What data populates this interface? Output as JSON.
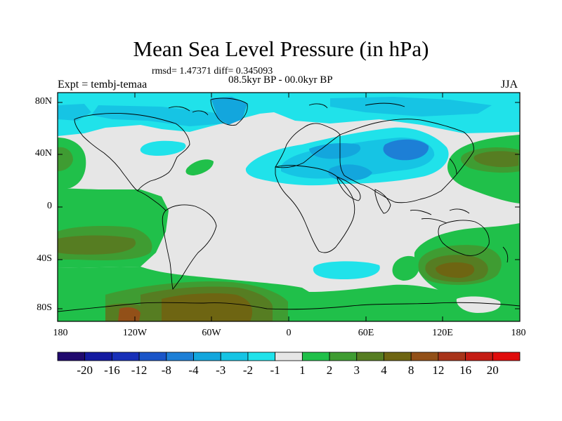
{
  "title": "Mean Sea Level Pressure (in hPa)",
  "rmsd_line": "rmsd= 1.47371 diff= 0.345093",
  "period": "08.5kyr BP - 00.0kyr BP",
  "expt": "Expt = tembj-temaa",
  "season": "JJA",
  "lat_labels": [
    "80N",
    "40N",
    "0",
    "40S",
    "80S"
  ],
  "lon_labels": [
    "180",
    "120W",
    "60W",
    "0",
    "60E",
    "120E",
    "180"
  ],
  "colorbar": {
    "labels": [
      "-20",
      "-16",
      "-12",
      "-8",
      "-4",
      "-3",
      "-2",
      "-1",
      "1",
      "2",
      "3",
      "4",
      "8",
      "12",
      "16",
      "20"
    ],
    "colors": [
      "#200a6e",
      "#141aa0",
      "#1830b8",
      "#1a55c8",
      "#1d7fd6",
      "#13a6dd",
      "#16c4e4",
      "#20e2ea",
      "#e6e6e6",
      "#20c04a",
      "#3f9c32",
      "#567d22",
      "#6e6512",
      "#925018",
      "#a8341a",
      "#c41c14",
      "#e00c0c"
    ]
  },
  "chart_data": {
    "type": "heatmap",
    "title": "Mean Sea Level Pressure (in hPa)",
    "variable": "mean sea level pressure difference",
    "units": "hPa",
    "x_range": [
      -180,
      180
    ],
    "y_range": [
      -90,
      90
    ],
    "levels": [
      -20,
      -16,
      -12,
      -8,
      -4,
      -3,
      -2,
      -1,
      1,
      2,
      3,
      4,
      8,
      12,
      16,
      20
    ]
  }
}
